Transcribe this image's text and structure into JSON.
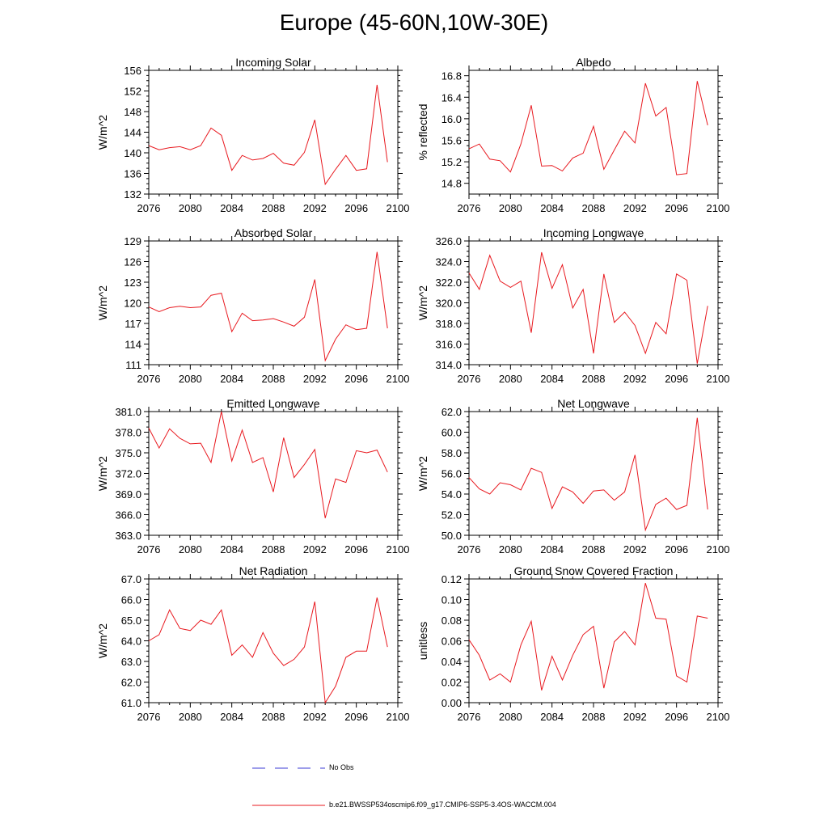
{
  "page": {
    "title": "Europe (45-60N,10W-30E)"
  },
  "legend": {
    "obs_label": "No Obs",
    "obs_color": "#3b3bd6",
    "model_label": "b.e21.BWSSP534oscmip6.f09_g17.CMIP6-SSP5-3.4OS-WACCM.004",
    "model_color": "#e8191f"
  },
  "chart_data": [
    {
      "type": "line",
      "title": "Incoming Solar",
      "ylabel": "W/m^2",
      "xlim": [
        2076,
        2100
      ],
      "ylim": [
        132,
        156
      ],
      "xticks": [
        "2076",
        "2080",
        "2084",
        "2088",
        "2092",
        "2096",
        "2100"
      ],
      "yticks": [
        "132",
        "136",
        "140",
        "144",
        "148",
        "152",
        "156"
      ],
      "x": [
        2076,
        2077,
        2078,
        2079,
        2080,
        2081,
        2082,
        2083,
        2084,
        2085,
        2086,
        2087,
        2088,
        2089,
        2090,
        2091,
        2092,
        2093,
        2094,
        2095,
        2096,
        2097,
        2098,
        2099
      ],
      "values": [
        141.4,
        140.6,
        141.0,
        141.2,
        140.6,
        141.4,
        144.8,
        143.4,
        136.6,
        139.5,
        138.6,
        138.9,
        139.9,
        138.0,
        137.6,
        140.1,
        146.4,
        133.9,
        136.8,
        139.5,
        136.6,
        136.9,
        153.2,
        138.2
      ]
    },
    {
      "type": "line",
      "title": "Albedo",
      "ylabel": "% reflected",
      "xlim": [
        2076,
        2100
      ],
      "ylim": [
        14.6,
        16.9
      ],
      "xticks": [
        "2076",
        "2080",
        "2084",
        "2088",
        "2092",
        "2096",
        "2100"
      ],
      "yticks": [
        "14.8",
        "15.2",
        "15.6",
        "16.0",
        "16.4",
        "16.8"
      ],
      "x": [
        2076,
        2077,
        2078,
        2079,
        2080,
        2081,
        2082,
        2083,
        2084,
        2085,
        2086,
        2087,
        2088,
        2089,
        2090,
        2091,
        2092,
        2093,
        2094,
        2095,
        2096,
        2097,
        2098,
        2099
      ],
      "values": [
        15.44,
        15.53,
        15.25,
        15.22,
        15.01,
        15.53,
        16.25,
        15.12,
        15.13,
        15.03,
        15.27,
        15.36,
        15.86,
        15.06,
        15.42,
        15.77,
        15.55,
        16.66,
        16.05,
        16.21,
        14.96,
        14.98,
        16.7,
        15.88
      ]
    },
    {
      "type": "line",
      "title": "Absorbed Solar",
      "ylabel": "W/m^2",
      "xlim": [
        2076,
        2100
      ],
      "ylim": [
        111,
        129
      ],
      "xticks": [
        "2076",
        "2080",
        "2084",
        "2088",
        "2092",
        "2096",
        "2100"
      ],
      "yticks": [
        "111",
        "114",
        "117",
        "120",
        "123",
        "126",
        "129"
      ],
      "x": [
        2076,
        2077,
        2078,
        2079,
        2080,
        2081,
        2082,
        2083,
        2084,
        2085,
        2086,
        2087,
        2088,
        2089,
        2090,
        2091,
        2092,
        2093,
        2094,
        2095,
        2096,
        2097,
        2098,
        2099
      ],
      "values": [
        119.4,
        118.7,
        119.3,
        119.5,
        119.3,
        119.4,
        121.1,
        121.4,
        115.8,
        118.5,
        117.4,
        117.5,
        117.7,
        117.2,
        116.6,
        117.9,
        123.4,
        111.6,
        114.7,
        116.8,
        116.1,
        116.3,
        127.4,
        116.3
      ]
    },
    {
      "type": "line",
      "title": "Incoming Longwave",
      "ylabel": "W/m^2",
      "xlim": [
        2076,
        2100
      ],
      "ylim": [
        314,
        326
      ],
      "xticks": [
        "2076",
        "2080",
        "2084",
        "2088",
        "2092",
        "2096",
        "2100"
      ],
      "yticks": [
        "314.0",
        "316.0",
        "318.0",
        "320.0",
        "322.0",
        "324.0",
        "326.0"
      ],
      "x": [
        2076,
        2077,
        2078,
        2079,
        2080,
        2081,
        2082,
        2083,
        2084,
        2085,
        2086,
        2087,
        2088,
        2089,
        2090,
        2091,
        2092,
        2093,
        2094,
        2095,
        2096,
        2097,
        2098,
        2099
      ],
      "values": [
        322.9,
        321.3,
        324.6,
        322.1,
        321.5,
        322.1,
        317.1,
        324.9,
        321.4,
        323.7,
        319.5,
        321.3,
        315.1,
        322.8,
        318.1,
        319.1,
        317.8,
        315.1,
        318.1,
        317.0,
        322.8,
        322.2,
        314.1,
        319.7
      ]
    },
    {
      "type": "line",
      "title": "Emitted Longwave",
      "ylabel": "W/m^2",
      "xlim": [
        2076,
        2100
      ],
      "ylim": [
        363,
        381
      ],
      "xticks": [
        "2076",
        "2080",
        "2084",
        "2088",
        "2092",
        "2096",
        "2100"
      ],
      "yticks": [
        "363.0",
        "366.0",
        "369.0",
        "372.0",
        "375.0",
        "378.0",
        "381.0"
      ],
      "x": [
        2076,
        2077,
        2078,
        2079,
        2080,
        2081,
        2082,
        2083,
        2084,
        2085,
        2086,
        2087,
        2088,
        2089,
        2090,
        2091,
        2092,
        2093,
        2094,
        2095,
        2096,
        2097,
        2098,
        2099
      ],
      "values": [
        378.6,
        375.7,
        378.5,
        377.1,
        376.3,
        376.4,
        373.6,
        381.0,
        373.8,
        378.3,
        373.6,
        374.3,
        369.3,
        377.2,
        371.4,
        373.3,
        375.5,
        365.5,
        371.2,
        370.7,
        375.3,
        375.0,
        375.4,
        372.2
      ]
    },
    {
      "type": "line",
      "title": "Net Longwave",
      "ylabel": "W/m^2",
      "xlim": [
        2076,
        2100
      ],
      "ylim": [
        50,
        62
      ],
      "xticks": [
        "2076",
        "2080",
        "2084",
        "2088",
        "2092",
        "2096",
        "2100"
      ],
      "yticks": [
        "50.0",
        "52.0",
        "54.0",
        "56.0",
        "58.0",
        "60.0",
        "62.0"
      ],
      "x": [
        2076,
        2077,
        2078,
        2079,
        2080,
        2081,
        2082,
        2083,
        2084,
        2085,
        2086,
        2087,
        2088,
        2089,
        2090,
        2091,
        2092,
        2093,
        2094,
        2095,
        2096,
        2097,
        2098,
        2099
      ],
      "values": [
        55.6,
        54.5,
        54.0,
        55.1,
        54.9,
        54.4,
        56.5,
        56.1,
        52.6,
        54.7,
        54.2,
        53.1,
        54.3,
        54.4,
        53.4,
        54.2,
        57.8,
        50.5,
        53.0,
        53.6,
        52.5,
        52.9,
        61.4,
        52.5
      ]
    },
    {
      "type": "line",
      "title": "Net Radiation",
      "ylabel": "W/m^2",
      "xlim": [
        2076,
        2100
      ],
      "ylim": [
        61,
        67
      ],
      "xticks": [
        "2076",
        "2080",
        "2084",
        "2088",
        "2092",
        "2096",
        "2100"
      ],
      "yticks": [
        "61.0",
        "62.0",
        "63.0",
        "64.0",
        "65.0",
        "66.0",
        "67.0"
      ],
      "x": [
        2076,
        2077,
        2078,
        2079,
        2080,
        2081,
        2082,
        2083,
        2084,
        2085,
        2086,
        2087,
        2088,
        2089,
        2090,
        2091,
        2092,
        2093,
        2094,
        2095,
        2096,
        2097,
        2098,
        2099
      ],
      "values": [
        64.0,
        64.3,
        65.5,
        64.6,
        64.5,
        65.0,
        64.8,
        65.5,
        63.3,
        63.8,
        63.2,
        64.4,
        63.4,
        62.8,
        63.1,
        63.7,
        65.9,
        61.0,
        61.8,
        63.2,
        63.5,
        63.5,
        66.1,
        63.7
      ]
    },
    {
      "type": "line",
      "title": "Ground Snow Covered Fraction",
      "ylabel": "unitless",
      "xlim": [
        2076,
        2100
      ],
      "ylim": [
        0.0,
        0.12
      ],
      "xticks": [
        "2076",
        "2080",
        "2084",
        "2088",
        "2092",
        "2096",
        "2100"
      ],
      "yticks": [
        "0.00",
        "0.02",
        "0.04",
        "0.06",
        "0.08",
        "0.10",
        "0.12"
      ],
      "x": [
        2076,
        2077,
        2078,
        2079,
        2080,
        2081,
        2082,
        2083,
        2084,
        2085,
        2086,
        2087,
        2088,
        2089,
        2090,
        2091,
        2092,
        2093,
        2094,
        2095,
        2096,
        2097,
        2098,
        2099
      ],
      "values": [
        0.061,
        0.046,
        0.022,
        0.028,
        0.02,
        0.056,
        0.079,
        0.012,
        0.045,
        0.022,
        0.046,
        0.066,
        0.074,
        0.014,
        0.059,
        0.069,
        0.056,
        0.116,
        0.082,
        0.081,
        0.026,
        0.02,
        0.084,
        0.082
      ]
    }
  ]
}
